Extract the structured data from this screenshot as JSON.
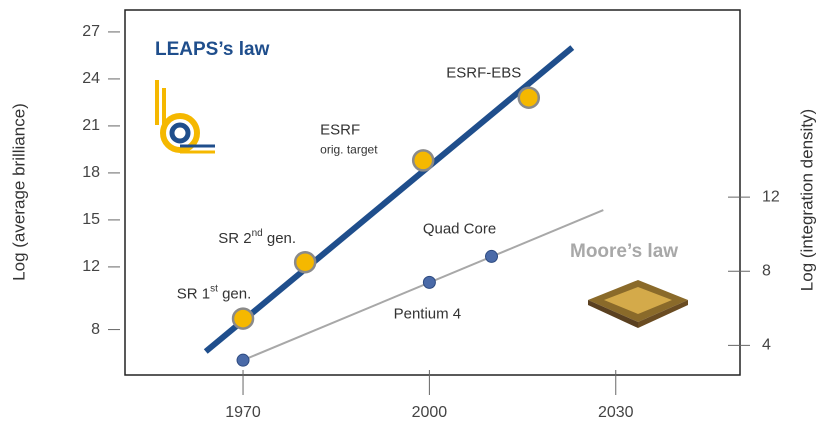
{
  "chart_data": {
    "type": "scatter",
    "y_label": "Log (average brilliance)",
    "y2_label": "Log (integration density)",
    "xlim": [
      1951,
      2050
    ],
    "xticks": [
      1970,
      2000,
      2030
    ],
    "ylim": [
      5.1,
      28.4
    ],
    "yticks": [
      8,
      12,
      15,
      18,
      21,
      24,
      27
    ],
    "y2lim": [
      2.4,
      22.1
    ],
    "y2ticks": [
      4,
      8,
      12
    ],
    "series": [
      {
        "name": "LEAPS’s law",
        "color": "#1f4e8c",
        "marker_color": "#f5b800",
        "x": [
          1970,
          1980,
          1999,
          2016
        ],
        "values": [
          8.7,
          12.3,
          18.8,
          22.8
        ],
        "labels": [
          {
            "text": "SR 1",
            "sup": "st",
            "rest": " gen."
          },
          {
            "text": "SR 2",
            "sup": "nd",
            "rest": " gen."
          },
          {
            "text": "ESRF",
            "line2": "orig. target"
          },
          {
            "text": "ESRF-EBS"
          }
        ],
        "trend": {
          "x": [
            1964,
            2023
          ],
          "values": [
            6.6,
            26.0
          ]
        }
      },
      {
        "name": "Moore’s law",
        "axis": "y2",
        "color": "#a8a8a8",
        "marker_color": "#4a6aa8",
        "x": [
          1970,
          2000,
          2010
        ],
        "values": [
          3.2,
          7.4,
          8.8
        ],
        "labels": [
          null,
          {
            "text": "Pentium 4"
          },
          {
            "text": "Quad Core"
          }
        ],
        "trend": {
          "x": [
            1970,
            2028
          ],
          "values": [
            3.2,
            11.3
          ]
        }
      }
    ]
  }
}
